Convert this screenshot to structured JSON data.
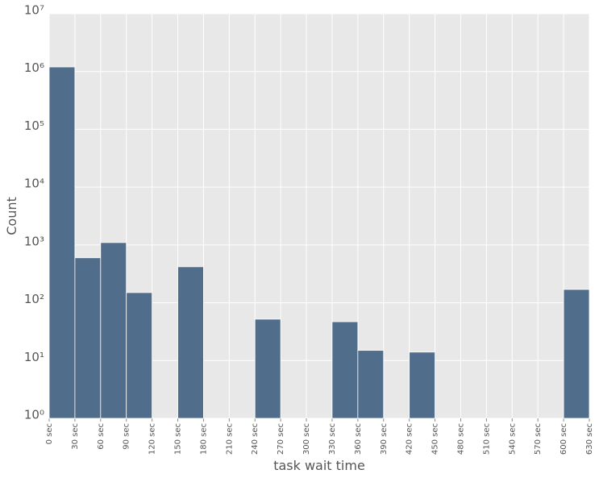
{
  "chart_data": {
    "type": "histogram",
    "xlabel": "task wait time",
    "ylabel": "Count",
    "bins": [
      0,
      30,
      60,
      90,
      120,
      150,
      180,
      210,
      240,
      270,
      300,
      330,
      360,
      390,
      420,
      450,
      480,
      510,
      540,
      570,
      600,
      630
    ],
    "values": [
      1200000,
      600,
      1100,
      150,
      0,
      420,
      0,
      0,
      52,
      0,
      0,
      47,
      15,
      0,
      14,
      0,
      0,
      0,
      0,
      0,
      170
    ],
    "color": "#506d8b",
    "yscale": "log",
    "grid": true,
    "xlim": [
      0,
      630
    ],
    "ylim": [
      1,
      10000000
    ],
    "xticks": [
      {
        "value": 0,
        "label": "0 sec"
      },
      {
        "value": 30,
        "label": "30 sec"
      },
      {
        "value": 60,
        "label": "60 sec"
      },
      {
        "value": 90,
        "label": "90 sec"
      },
      {
        "value": 120,
        "label": "120 sec"
      },
      {
        "value": 150,
        "label": "150 sec"
      },
      {
        "value": 180,
        "label": "180 sec"
      },
      {
        "value": 210,
        "label": "210 sec"
      },
      {
        "value": 240,
        "label": "240 sec"
      },
      {
        "value": 270,
        "label": "270 sec"
      },
      {
        "value": 300,
        "label": "300 sec"
      },
      {
        "value": 330,
        "label": "330 sec"
      },
      {
        "value": 360,
        "label": "360 sec"
      },
      {
        "value": 390,
        "label": "390 sec"
      },
      {
        "value": 420,
        "label": "420 sec"
      },
      {
        "value": 450,
        "label": "450 sec"
      },
      {
        "value": 480,
        "label": "480 sec"
      },
      {
        "value": 510,
        "label": "510 sec"
      },
      {
        "value": 540,
        "label": "540 sec"
      },
      {
        "value": 570,
        "label": "570 sec"
      },
      {
        "value": 600,
        "label": "600 sec"
      },
      {
        "value": 630,
        "label": "630 sec"
      }
    ],
    "yticks": [
      {
        "value": 1,
        "label": "10⁰"
      },
      {
        "value": 10,
        "label": "10¹"
      },
      {
        "value": 100,
        "label": "10²"
      },
      {
        "value": 1000,
        "label": "10³"
      },
      {
        "value": 10000,
        "label": "10⁴"
      },
      {
        "value": 100000,
        "label": "10⁵"
      },
      {
        "value": 1000000,
        "label": "10⁶"
      },
      {
        "value": 10000000,
        "label": "10⁷"
      }
    ]
  }
}
